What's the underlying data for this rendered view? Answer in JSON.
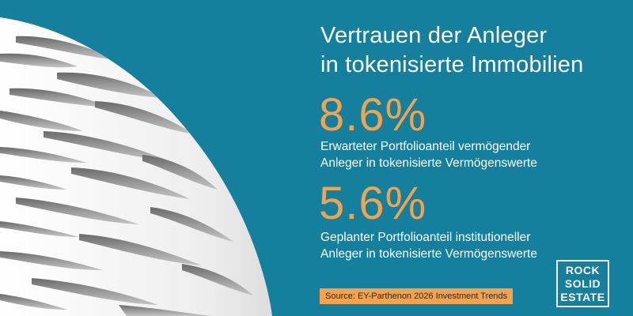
{
  "title": "Vertrauen der Anleger\nin tokenisierte Immobilien",
  "stats": [
    {
      "value": "8.6%",
      "description": "Erwarteter Portfolioanteil vermögender\nAnleger in tokenisierte Vermögenswerte"
    },
    {
      "value": "5.6%",
      "description": "Geplanter Portfolioanteil institutioneller\nAnleger in tokenisierte Vermögenswerte"
    }
  ],
  "source": "Source: EY-Parthenon 2026 Investment Trends",
  "logo": {
    "lines": [
      "ROCK",
      "SOLID",
      "ESTATE"
    ]
  },
  "colors": {
    "background": "#14809e",
    "accent": "#f4a24c",
    "text": "#ffffff"
  },
  "image": "white-building-facade-photo"
}
